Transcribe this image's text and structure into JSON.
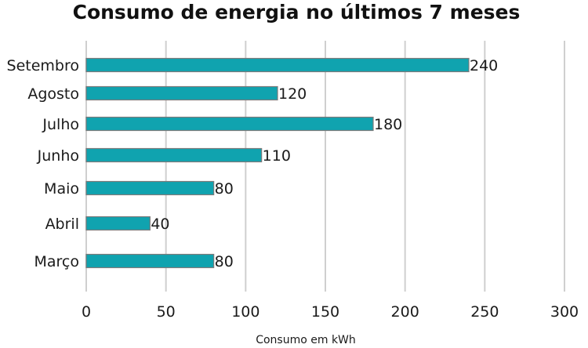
{
  "chart_data": {
    "type": "bar",
    "orientation": "horizontal",
    "title": "Consumo de energia no últimos 7 meses",
    "xlabel": "Consumo em kWh",
    "ylabel": "",
    "categories": [
      "Setembro",
      "Agosto",
      "Julho",
      "Junho",
      "Maio",
      "Abril",
      "Março"
    ],
    "values": [
      240,
      120,
      180,
      110,
      80,
      40,
      80
    ],
    "xlim": [
      0,
      300
    ],
    "xticks": [
      0,
      50,
      100,
      150,
      200,
      250,
      300
    ],
    "grid": "vertical",
    "bar_color": "#10a3af",
    "data_labels": true
  }
}
